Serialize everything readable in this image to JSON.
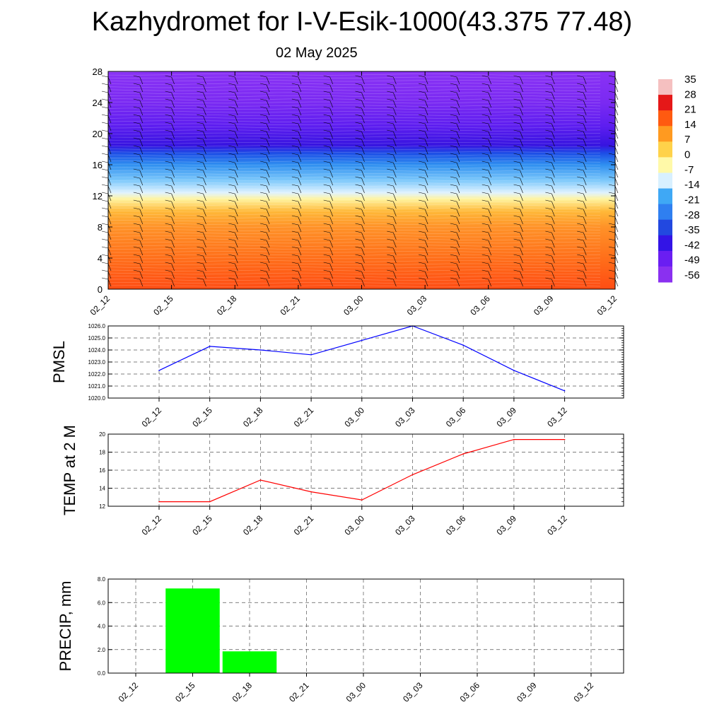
{
  "title": "Kazhydromet for I-V-Esik-1000(43.375 77.48)",
  "subtitle": "02 May 2025",
  "chart_data": [
    {
      "type": "heatmap",
      "ylim": [
        0,
        28
      ],
      "yticks": [
        "0",
        "4",
        "8",
        "12",
        "16",
        "20",
        "24",
        "28"
      ],
      "xticks": [
        "02_12",
        "02_15",
        "02_18",
        "02_21",
        "03_00",
        "03_03",
        "03_06",
        "03_09",
        "03_12"
      ],
      "colorbar": {
        "labels": [
          "35",
          "28",
          "21",
          "14",
          "7",
          "0",
          "-7",
          "-14",
          "-21",
          "-28",
          "-35",
          "-42",
          "-49",
          "-56"
        ],
        "colors": [
          "#f5c0c0",
          "#e51818",
          "#ff5a10",
          "#ff9a20",
          "#ffd24a",
          "#fff9a8",
          "#d8f0ff",
          "#3fa8f5",
          "#2f7ff0",
          "#2248e0",
          "#3314e6",
          "#6a1ef2",
          "#8a30f0"
        ]
      },
      "level_colors": [
        [
          0,
          "#ff4d14"
        ],
        [
          4,
          "#ff6f1a"
        ],
        [
          8,
          "#ff9228"
        ],
        [
          10,
          "#ffb838"
        ],
        [
          11.6,
          "#fff4a0"
        ],
        [
          12.4,
          "#dff2ff"
        ],
        [
          14,
          "#7cc8fb"
        ],
        [
          16,
          "#2f8ff0"
        ],
        [
          17.5,
          "#1d4de6"
        ],
        [
          18.5,
          "#3714e0"
        ],
        [
          21,
          "#5e1ef0"
        ],
        [
          24,
          "#7a2af2"
        ],
        [
          28,
          "#8a32f5"
        ]
      ]
    },
    {
      "type": "line",
      "ylabel": "PMSL",
      "x": [
        "02_12",
        "02_15",
        "02_18",
        "02_21",
        "03_00",
        "03_03",
        "03_06",
        "03_09",
        "03_12"
      ],
      "ylim": [
        1020,
        1026
      ],
      "yticks": [
        "1020.0",
        "1021.0",
        "1022.0",
        "1023.0",
        "1024.0",
        "1025.0",
        "1026.0"
      ],
      "series": [
        {
          "values": [
            1022.3,
            1024.3,
            1024.0,
            1023.6,
            1024.8,
            1026.0,
            1024.4,
            1022.3,
            1020.6
          ],
          "color": "#0000ff"
        }
      ]
    },
    {
      "type": "line",
      "ylabel": "TEMP at 2 M",
      "x": [
        "02_12",
        "02_15",
        "02_18",
        "02_21",
        "03_00",
        "03_03",
        "03_06",
        "03_09",
        "03_12"
      ],
      "ylim": [
        12,
        20
      ],
      "yticks": [
        "12",
        "14",
        "16",
        "18",
        "20"
      ],
      "series": [
        {
          "values": [
            12.5,
            12.5,
            14.9,
            13.6,
            12.7,
            15.5,
            17.8,
            19.4,
            19.4
          ],
          "color": "#ff0000"
        }
      ]
    },
    {
      "type": "bar",
      "ylabel": "PRECIP, mm",
      "categories": [
        "02_12",
        "02_15",
        "02_18",
        "02_21",
        "03_00",
        "03_03",
        "03_06",
        "03_09",
        "03_12"
      ],
      "ylim": [
        0,
        8
      ],
      "yticks": [
        "0.0",
        "2.0",
        "4.0",
        "6.0",
        "8.0"
      ],
      "values": [
        0,
        7.2,
        1.85,
        0,
        0,
        0,
        0,
        0,
        0
      ],
      "color": "#00ff00"
    }
  ]
}
